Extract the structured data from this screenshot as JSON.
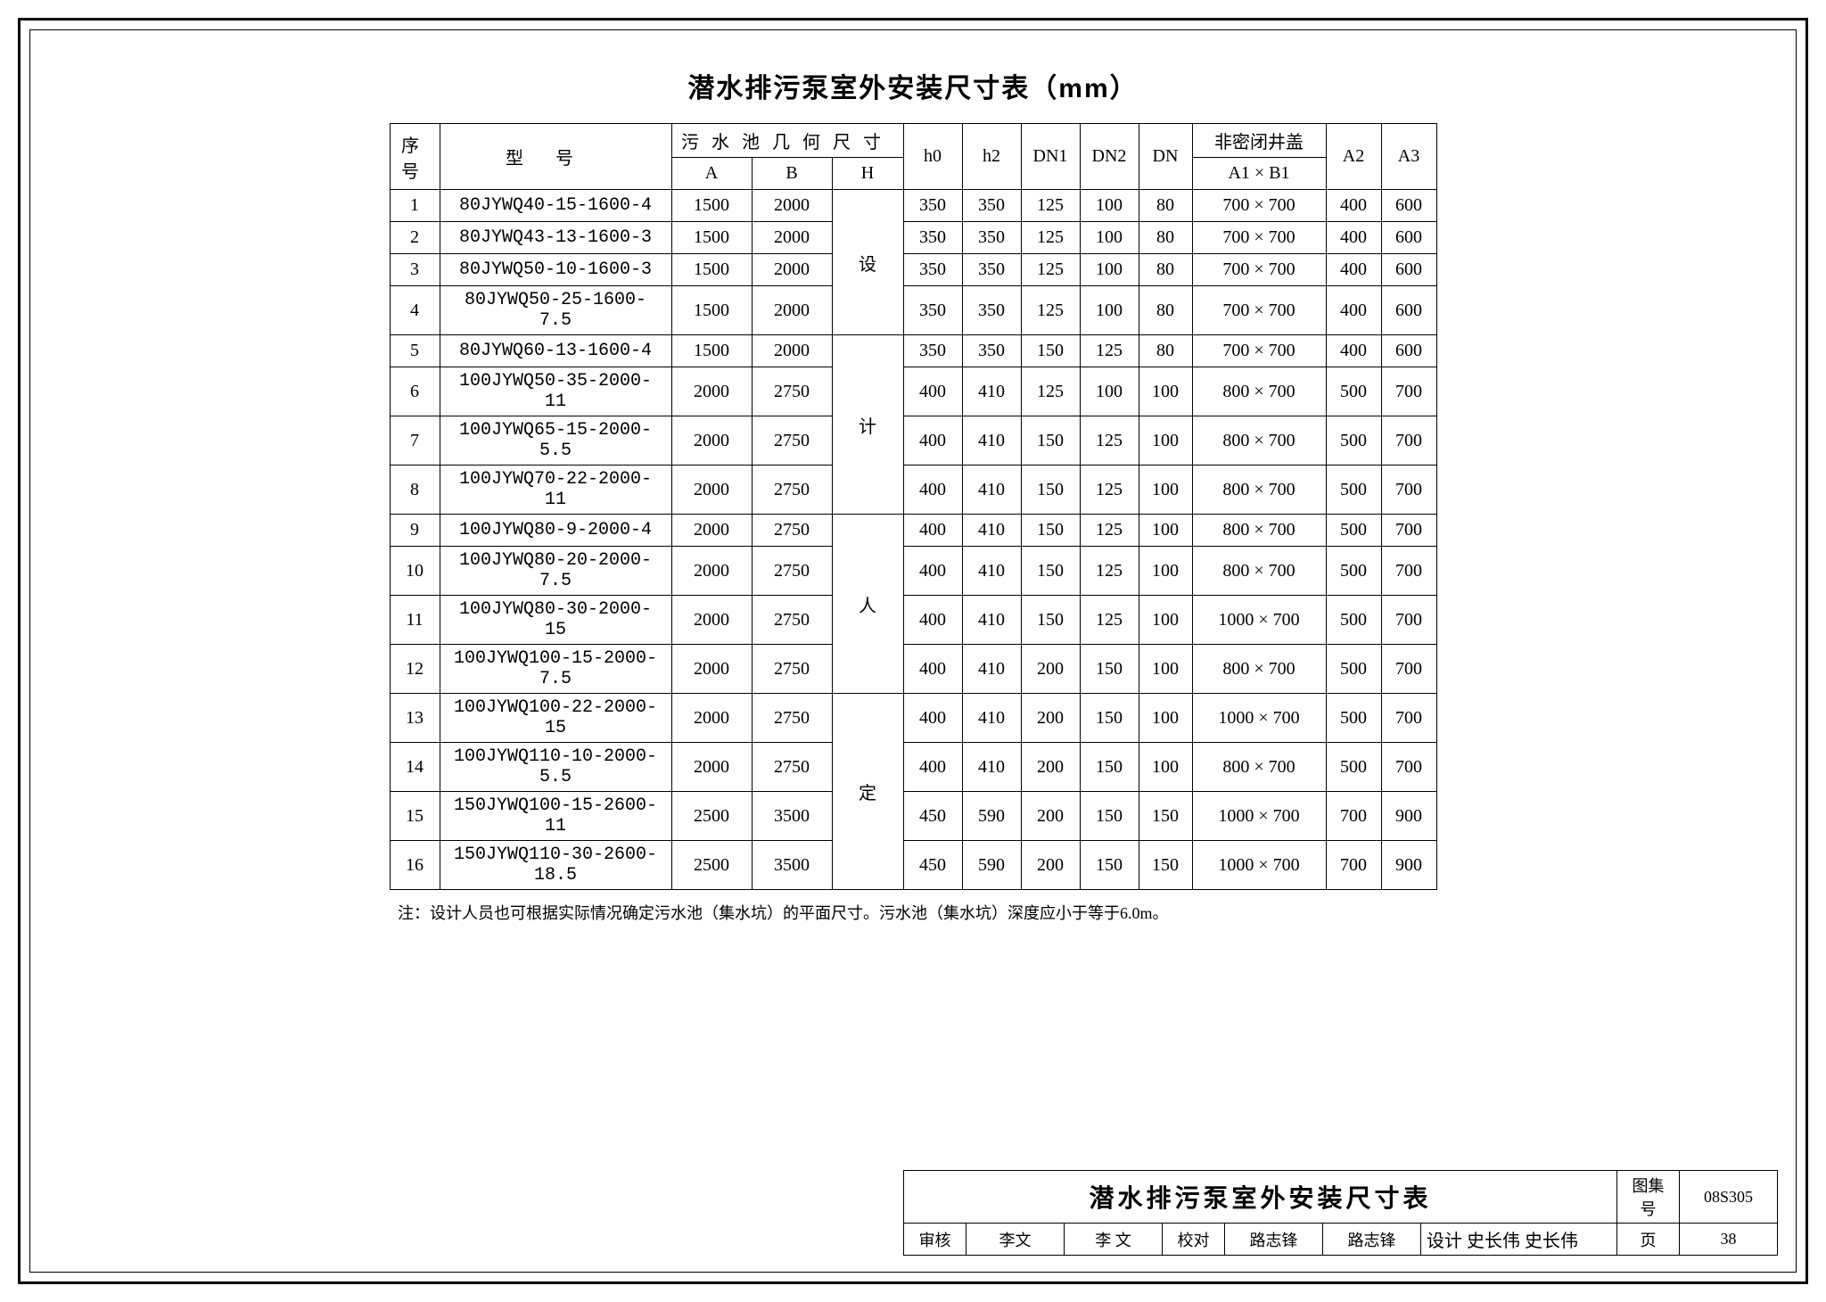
{
  "title": "潜水排污泵室外安装尺寸表（mm）",
  "columns": {
    "seq": "序号",
    "model": "型号",
    "pool_group": "污水池几何尺寸",
    "A": "A",
    "B": "B",
    "H": "H",
    "h0": "h0",
    "h2": "h2",
    "DN1": "DN1",
    "DN2": "DN2",
    "DN": "DN",
    "cover_group": "非密闭井盖",
    "cover_sub": "A1 × B1",
    "A2": "A2",
    "A3": "A3"
  },
  "h_vertical_text": "设计人定",
  "rows": [
    {
      "seq": "1",
      "model": "80JYWQ40-15-1600-4",
      "A": "1500",
      "B": "2000",
      "h0": "350",
      "h2": "350",
      "DN1": "125",
      "DN2": "100",
      "DN": "80",
      "cover": "700 × 700",
      "A2": "400",
      "A3": "600"
    },
    {
      "seq": "2",
      "model": "80JYWQ43-13-1600-3",
      "A": "1500",
      "B": "2000",
      "h0": "350",
      "h2": "350",
      "DN1": "125",
      "DN2": "100",
      "DN": "80",
      "cover": "700 × 700",
      "A2": "400",
      "A3": "600"
    },
    {
      "seq": "3",
      "model": "80JYWQ50-10-1600-3",
      "A": "1500",
      "B": "2000",
      "h0": "350",
      "h2": "350",
      "DN1": "125",
      "DN2": "100",
      "DN": "80",
      "cover": "700 × 700",
      "A2": "400",
      "A3": "600"
    },
    {
      "seq": "4",
      "model": "80JYWQ50-25-1600-7.5",
      "A": "1500",
      "B": "2000",
      "h0": "350",
      "h2": "350",
      "DN1": "125",
      "DN2": "100",
      "DN": "80",
      "cover": "700 × 700",
      "A2": "400",
      "A3": "600"
    },
    {
      "seq": "5",
      "model": "80JYWQ60-13-1600-4",
      "A": "1500",
      "B": "2000",
      "h0": "350",
      "h2": "350",
      "DN1": "150",
      "DN2": "125",
      "DN": "80",
      "cover": "700 × 700",
      "A2": "400",
      "A3": "600"
    },
    {
      "seq": "6",
      "model": "100JYWQ50-35-2000-11",
      "A": "2000",
      "B": "2750",
      "h0": "400",
      "h2": "410",
      "DN1": "125",
      "DN2": "100",
      "DN": "100",
      "cover": "800 × 700",
      "A2": "500",
      "A3": "700"
    },
    {
      "seq": "7",
      "model": "100JYWQ65-15-2000-5.5",
      "A": "2000",
      "B": "2750",
      "h0": "400",
      "h2": "410",
      "DN1": "150",
      "DN2": "125",
      "DN": "100",
      "cover": "800 × 700",
      "A2": "500",
      "A3": "700"
    },
    {
      "seq": "8",
      "model": "100JYWQ70-22-2000-11",
      "A": "2000",
      "B": "2750",
      "h0": "400",
      "h2": "410",
      "DN1": "150",
      "DN2": "125",
      "DN": "100",
      "cover": "800 × 700",
      "A2": "500",
      "A3": "700"
    },
    {
      "seq": "9",
      "model": "100JYWQ80-9-2000-4",
      "A": "2000",
      "B": "2750",
      "h0": "400",
      "h2": "410",
      "DN1": "150",
      "DN2": "125",
      "DN": "100",
      "cover": "800 × 700",
      "A2": "500",
      "A3": "700"
    },
    {
      "seq": "10",
      "model": "100JYWQ80-20-2000-7.5",
      "A": "2000",
      "B": "2750",
      "h0": "400",
      "h2": "410",
      "DN1": "150",
      "DN2": "125",
      "DN": "100",
      "cover": "800 × 700",
      "A2": "500",
      "A3": "700"
    },
    {
      "seq": "11",
      "model": "100JYWQ80-30-2000-15",
      "A": "2000",
      "B": "2750",
      "h0": "400",
      "h2": "410",
      "DN1": "150",
      "DN2": "125",
      "DN": "100",
      "cover": "1000 × 700",
      "A2": "500",
      "A3": "700"
    },
    {
      "seq": "12",
      "model": "100JYWQ100-15-2000-7.5",
      "A": "2000",
      "B": "2750",
      "h0": "400",
      "h2": "410",
      "DN1": "200",
      "DN2": "150",
      "DN": "100",
      "cover": "800 × 700",
      "A2": "500",
      "A3": "700"
    },
    {
      "seq": "13",
      "model": "100JYWQ100-22-2000-15",
      "A": "2000",
      "B": "2750",
      "h0": "400",
      "h2": "410",
      "DN1": "200",
      "DN2": "150",
      "DN": "100",
      "cover": "1000 × 700",
      "A2": "500",
      "A3": "700"
    },
    {
      "seq": "14",
      "model": "100JYWQ110-10-2000-5.5",
      "A": "2000",
      "B": "2750",
      "h0": "400",
      "h2": "410",
      "DN1": "200",
      "DN2": "150",
      "DN": "100",
      "cover": "800 × 700",
      "A2": "500",
      "A3": "700"
    },
    {
      "seq": "15",
      "model": "150JYWQ100-15-2600-11",
      "A": "2500",
      "B": "3500",
      "h0": "450",
      "h2": "590",
      "DN1": "200",
      "DN2": "150",
      "DN": "150",
      "cover": "1000 × 700",
      "A2": "700",
      "A3": "900"
    },
    {
      "seq": "16",
      "model": "150JYWQ110-30-2600-18.5",
      "A": "2500",
      "B": "3500",
      "h0": "450",
      "h2": "590",
      "DN1": "200",
      "DN2": "150",
      "DN": "150",
      "cover": "1000 × 700",
      "A2": "700",
      "A3": "900"
    }
  ],
  "h_segments": [
    "设",
    "计",
    "人",
    "定"
  ],
  "note": "注：设计人员也可根据实际情况确定污水池（集水坑）的平面尺寸。污水池（集水坑）深度应小于等于6.0m。",
  "title_block": {
    "main": "潜水排污泵室外安装尺寸表",
    "drawing_set_label": "图集号",
    "drawing_set_value": "08S305",
    "review_label": "审核",
    "review_name": "李文",
    "review_sig": "李 文",
    "check_label": "校对",
    "check_name": "路志锋",
    "check_sig": "路志锋",
    "design_label": "设计",
    "design_name": "史长伟",
    "design_sig": "史长伟",
    "page_label": "页",
    "page_value": "38"
  }
}
